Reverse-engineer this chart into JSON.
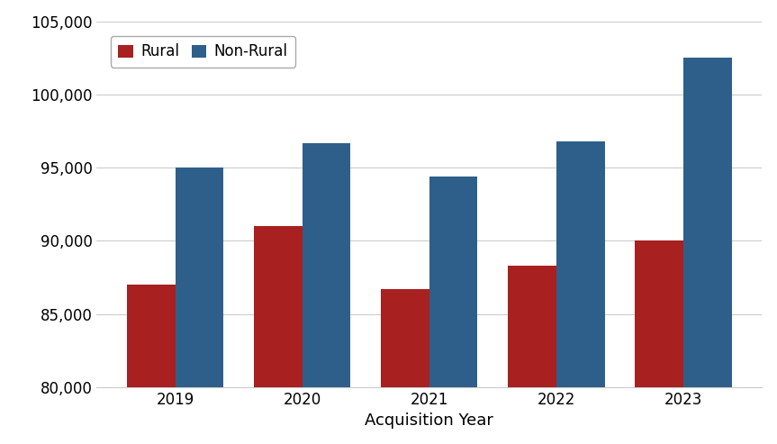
{
  "years": [
    2019,
    2020,
    2021,
    2022,
    2023
  ],
  "rural": [
    87000,
    91000,
    86700,
    88300,
    90000
  ],
  "non_rural": [
    95000,
    96700,
    94400,
    96800,
    102500
  ],
  "rural_color": "#a82020",
  "non_rural_color": "#2e5f8a",
  "xlabel": "Acquisition Year",
  "ylim": [
    80000,
    105000
  ],
  "yticks": [
    80000,
    85000,
    90000,
    95000,
    100000,
    105000
  ],
  "legend_labels": [
    "Rural",
    "Non-Rural"
  ],
  "background_color": "#ffffff",
  "grid_color": "#cccccc",
  "bar_width": 0.38,
  "xlabel_fontsize": 13,
  "tick_fontsize": 12,
  "legend_fontsize": 12
}
